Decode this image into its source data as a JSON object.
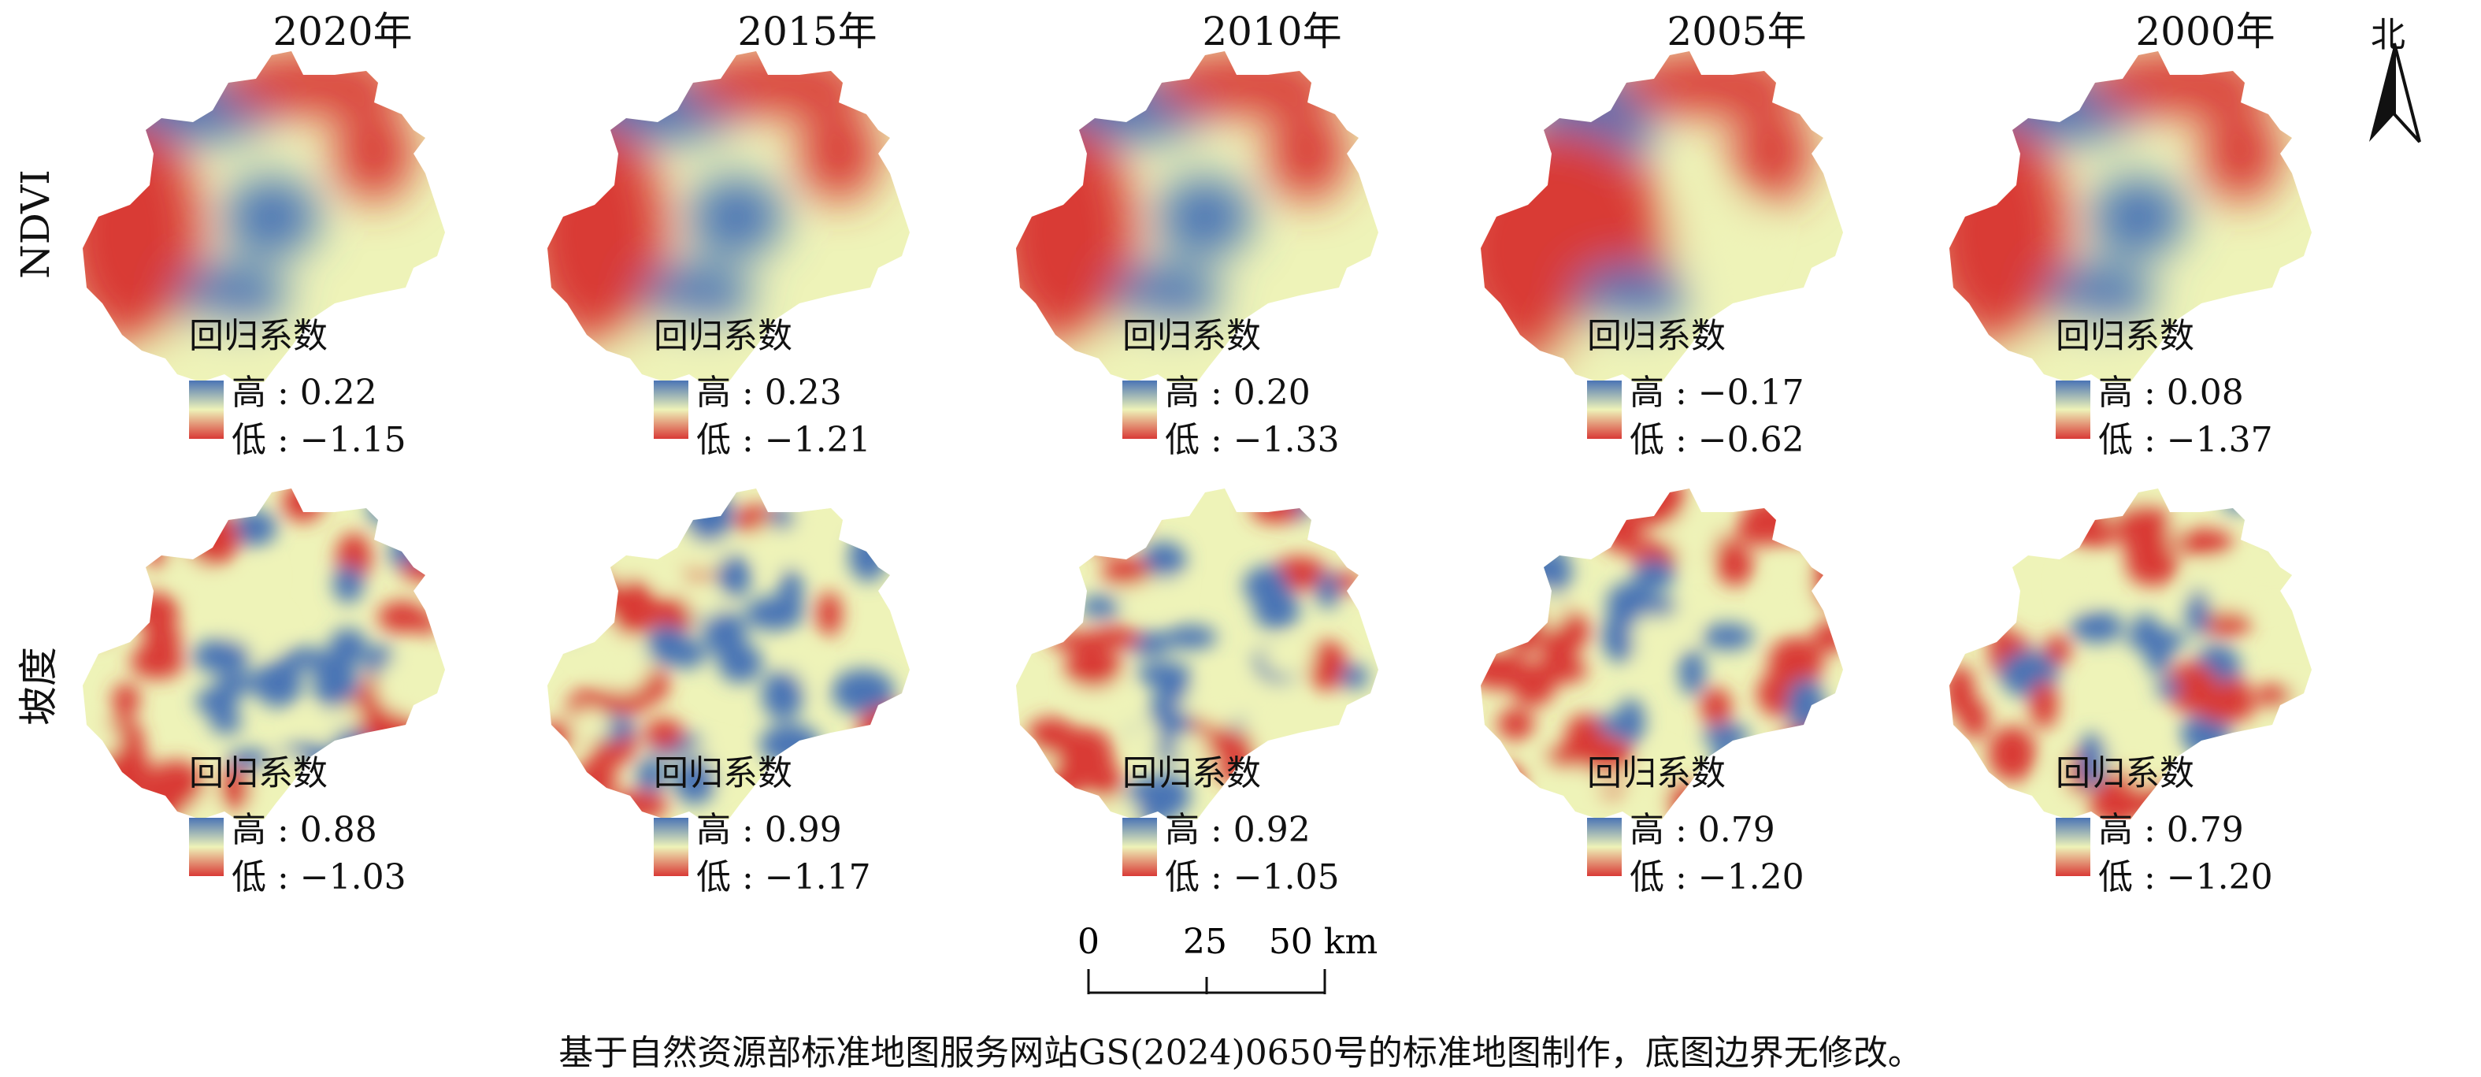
{
  "years": [
    "2020年",
    "2015年",
    "2010年",
    "2005年",
    "2000年"
  ],
  "rows": [
    {
      "label": "NDVI",
      "legend_title": "回归系数",
      "panels": [
        {
          "high": "高 : 0.22",
          "low": "低 : −1.15"
        },
        {
          "high": "高 : 0.23",
          "low": "低 : −1.21"
        },
        {
          "high": "高 : 0.20",
          "low": "低 : −1.33"
        },
        {
          "high": "高 : −0.17",
          "low": "低 : −0.62"
        },
        {
          "high": "高 : 0.08",
          "low": "低 : −1.37"
        }
      ]
    },
    {
      "label": "坡度",
      "legend_title": "回归系数",
      "panels": [
        {
          "high": "高 : 0.88",
          "low": "低 : −1.03"
        },
        {
          "high": "高 : 0.99",
          "low": "低 : −1.17"
        },
        {
          "high": "高 : 0.92",
          "low": "低 : −1.05"
        },
        {
          "high": "高 : 0.79",
          "low": "低 : −1.20"
        },
        {
          "high": "高 : 0.79",
          "low": "低 : −1.20"
        }
      ]
    }
  ],
  "north_label": "北",
  "scale": {
    "ticks": [
      "0",
      "25",
      "50 km"
    ]
  },
  "caption": "基于自然资源部标准地图服务网站GS(2024)0650号的标准地图制作，底图边界无修改。",
  "colors": {
    "high": "#4a74b5",
    "mid": "#eef3b8",
    "low": "#d93a36"
  }
}
